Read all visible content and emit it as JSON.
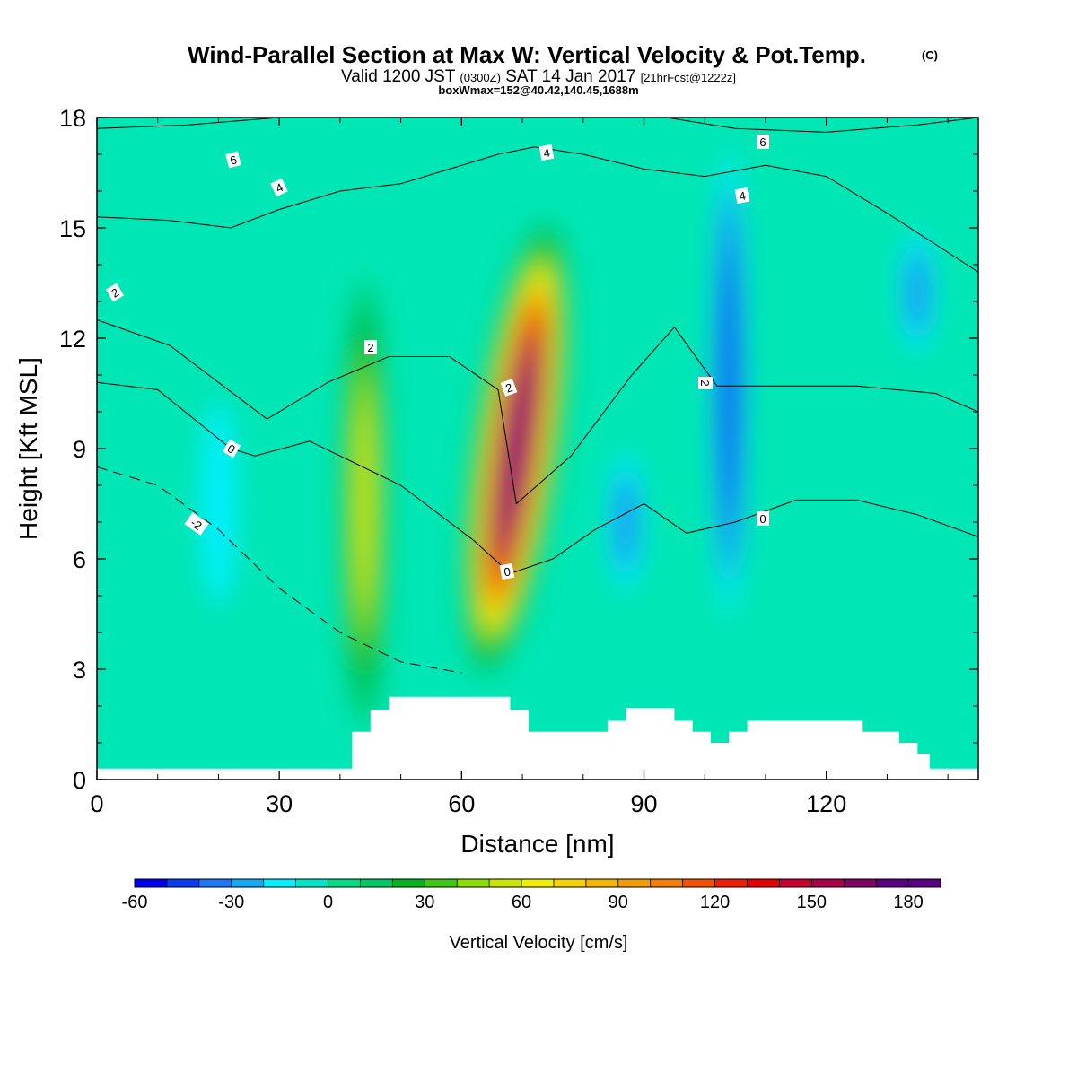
{
  "chart_data": {
    "type": "heatmap",
    "title": "Wind-Parallel Section at Max W: Vertical Velocity & Pot.Temp.",
    "title_mark": "(C)",
    "subtitle_parts": [
      "Valid 1200 JST",
      "(0300Z)",
      "SAT 14 Jan 2017",
      "[21hrFcst@1222z]"
    ],
    "info": "boxWmax=152@40.42,140.45,1688m",
    "xlabel": "Distance [nm]",
    "ylabel": "Height [Kft MSL]",
    "xlim": [
      0,
      145
    ],
    "ylim": [
      0,
      18
    ],
    "xticks": [
      "0",
      "30",
      "60",
      "90",
      "120"
    ],
    "yticks": [
      "0",
      "3",
      "6",
      "9",
      "12",
      "15",
      "18"
    ],
    "colorbar": {
      "label": "Vertical Velocity [cm/s]",
      "range": [
        -60,
        190
      ],
      "step": 10,
      "tick_labels": [
        "-60",
        "-30",
        "0",
        "30",
        "60",
        "90",
        "120",
        "150",
        "180"
      ],
      "colors": [
        "#0000f0",
        "#0a3cf0",
        "#1e78f5",
        "#14aaf5",
        "#00f0ff",
        "#00e6c8",
        "#00dc82",
        "#00c864",
        "#00b41e",
        "#3cc814",
        "#8cdc00",
        "#c8e600",
        "#f0f000",
        "#f5d200",
        "#f5b400",
        "#f59b00",
        "#f57d00",
        "#f55000",
        "#f01e00",
        "#e60000",
        "#c80032",
        "#aa0046",
        "#820064",
        "#5a0082"
      ]
    },
    "wind_w_features": [
      {
        "kind": "updraft",
        "x": 69,
        "z_top": 15.2,
        "z_bottom": 2.8,
        "w_max": 183
      },
      {
        "kind": "updraft",
        "x": 44,
        "z_top": 13.5,
        "z_bottom": 1.5,
        "w_max": 60
      },
      {
        "kind": "downdraft",
        "x": 104,
        "z_top": 17.5,
        "z_bottom": 4,
        "w_min": -55
      },
      {
        "kind": "downdraft",
        "x": 87,
        "z_top": 9,
        "z_bottom": 5,
        "w_min": -35
      },
      {
        "kind": "downdraft",
        "x": 20,
        "z_top": 10.5,
        "z_bottom": 4.5,
        "w_min": -15
      },
      {
        "kind": "downdraft",
        "x": 135,
        "z_top": 15,
        "z_bottom": 11.5,
        "w_min": -35
      }
    ],
    "terrain": {
      "x": [
        0,
        42,
        42,
        45,
        45,
        48,
        48,
        68,
        68,
        71,
        71,
        84,
        84,
        87,
        87,
        95,
        95,
        98,
        98,
        101,
        101,
        104,
        104,
        107,
        107,
        110,
        110,
        126,
        126,
        132,
        132,
        135,
        135,
        137,
        137,
        143,
        143,
        145
      ],
      "z": [
        0.3,
        0.3,
        1.3,
        1.3,
        1.9,
        1.9,
        2.25,
        2.25,
        1.9,
        1.9,
        1.3,
        1.3,
        1.6,
        1.6,
        1.95,
        1.95,
        1.6,
        1.6,
        1.3,
        1.3,
        1.0,
        1.0,
        1.3,
        1.3,
        1.6,
        1.6,
        1.6,
        1.6,
        1.3,
        1.3,
        1.0,
        1.0,
        0.7,
        0.7,
        0.3,
        0.3,
        0.3,
        0.3
      ]
    },
    "theta_contours": [
      {
        "label": "-2",
        "dashed": true,
        "x": [
          0,
          10,
          20,
          30,
          40,
          50,
          60
        ],
        "z": [
          8.5,
          8.0,
          6.8,
          5.2,
          4.0,
          3.2,
          2.9
        ]
      },
      {
        "label": "0",
        "dashed": false,
        "x": [
          0,
          10,
          22,
          26,
          35,
          50,
          62,
          68,
          75,
          82,
          90,
          97,
          105,
          115,
          125,
          135,
          145
        ],
        "z": [
          10.8,
          10.6,
          9.0,
          8.8,
          9.2,
          8.0,
          6.5,
          5.6,
          6.0,
          6.8,
          7.5,
          6.7,
          7.0,
          7.6,
          7.6,
          7.2,
          6.6
        ]
      },
      {
        "label": "2",
        "dashed": false,
        "x": [
          0,
          12,
          24,
          28,
          38,
          48,
          58,
          66,
          69,
          78,
          88,
          95,
          102,
          112,
          125,
          138,
          145
        ],
        "z": [
          12.5,
          11.8,
          10.3,
          9.8,
          10.8,
          11.5,
          11.5,
          10.6,
          7.5,
          8.8,
          11.0,
          12.3,
          10.7,
          10.7,
          10.7,
          10.5,
          10.0
        ]
      },
      {
        "label": "4",
        "dashed": false,
        "x": [
          0,
          12,
          22,
          30,
          40,
          50,
          58,
          66,
          72,
          80,
          90,
          100,
          110,
          120,
          130,
          145
        ],
        "z": [
          15.3,
          15.2,
          15.0,
          15.5,
          16.0,
          16.2,
          16.6,
          17.0,
          17.2,
          17.0,
          16.6,
          16.4,
          16.7,
          16.4,
          15.4,
          13.8
        ]
      },
      {
        "label": "6",
        "dashed": false,
        "x": [
          0,
          15,
          30,
          45,
          60,
          75,
          90,
          105,
          120,
          135,
          145
        ],
        "z": [
          17.7,
          17.8,
          18.0,
          18.1,
          18.2,
          18.2,
          18.1,
          17.7,
          17.6,
          17.8,
          18.0
        ]
      }
    ],
    "contour_labels": [
      "6",
      "4",
      "2",
      "2",
      "0",
      "-2",
      "2",
      "0",
      "4",
      "6",
      "4",
      "2",
      "0"
    ]
  }
}
